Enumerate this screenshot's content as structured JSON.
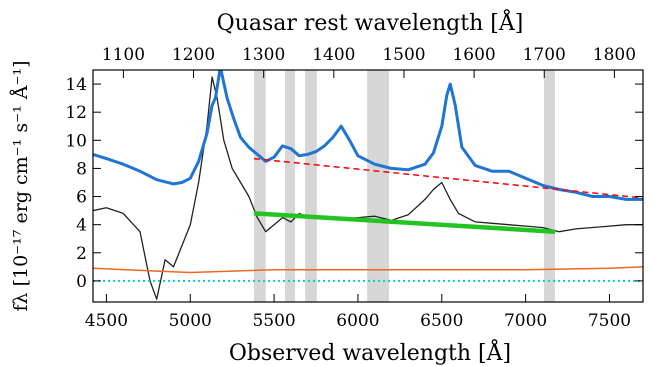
{
  "chart_data": {
    "type": "line",
    "top_axis_label": "Quasar rest wavelength [Å]",
    "xlabel": "Observed wavelength [Å]",
    "ylabel": "fλ [10⁻¹⁷ erg cm⁻¹ s⁻¹ Å⁻¹]",
    "xlim": [
      4420,
      7700
    ],
    "ylim": [
      -1.5,
      15
    ],
    "x_ticks": [
      4500,
      5000,
      5500,
      6000,
      6500,
      7000,
      7500
    ],
    "x_tick_labels": [
      "4500",
      "5000",
      "5500",
      "6000",
      "6500",
      "7000",
      "7500"
    ],
    "y_ticks": [
      0,
      2,
      4,
      6,
      8,
      10,
      12,
      14
    ],
    "y_tick_labels": [
      "0",
      "2",
      "4",
      "6",
      "8",
      "10",
      "12",
      "14"
    ],
    "top_ticks_rest": [
      1100,
      1200,
      1300,
      1400,
      1500,
      1600,
      1700,
      1800
    ],
    "top_tick_labels": [
      "1100",
      "1200",
      "1300",
      "1400",
      "1500",
      "1600",
      "1700",
      "1800"
    ],
    "shaded_regions": [
      [
        5380,
        5450
      ],
      [
        5565,
        5625
      ],
      [
        5685,
        5755
      ],
      [
        6055,
        6185
      ],
      [
        7110,
        7175
      ]
    ],
    "series": [
      {
        "kind": "step",
        "color": "#222222",
        "x": [
          4420,
          4500,
          4600,
          4700,
          4760,
          4800,
          4850,
          4900,
          4950,
          5000,
          5050,
          5100,
          5130,
          5160,
          5200,
          5250,
          5300,
          5350,
          5400,
          5450,
          5500,
          5550,
          5600,
          5650,
          5700,
          5800,
          5900,
          6000,
          6100,
          6200,
          6300,
          6400,
          6450,
          6500,
          6550,
          6600,
          6700,
          6800,
          6900,
          7000,
          7100,
          7200,
          7300,
          7400,
          7500,
          7600,
          7700
        ],
        "y": [
          5.0,
          5.2,
          4.8,
          3.5,
          0.0,
          -1.3,
          1.5,
          1.0,
          2.5,
          4.0,
          7.0,
          11.0,
          14.5,
          13.0,
          10.0,
          8.0,
          7.0,
          6.0,
          4.5,
          3.5,
          4.0,
          4.5,
          4.2,
          4.8,
          4.5,
          4.5,
          4.4,
          4.5,
          4.6,
          4.3,
          4.7,
          5.8,
          6.5,
          7.0,
          5.8,
          4.8,
          4.2,
          4.1,
          4.0,
          3.9,
          3.8,
          3.5,
          3.7,
          3.8,
          3.9,
          4.0,
          4.0
        ]
      },
      {
        "kind": "line",
        "color": "#1f74d4",
        "x": [
          4420,
          4500,
          4600,
          4700,
          4800,
          4900,
          4950,
          5000,
          5050,
          5100,
          5130,
          5150,
          5180,
          5220,
          5260,
          5300,
          5350,
          5400,
          5450,
          5500,
          5550,
          5600,
          5650,
          5700,
          5750,
          5800,
          5850,
          5900,
          5950,
          6000,
          6100,
          6200,
          6300,
          6400,
          6450,
          6500,
          6530,
          6550,
          6580,
          6620,
          6700,
          6800,
          6900,
          7000,
          7100,
          7200,
          7300,
          7400,
          7500,
          7600,
          7700
        ],
        "y": [
          9.0,
          8.7,
          8.3,
          7.8,
          7.2,
          6.9,
          7.0,
          7.3,
          8.5,
          10.5,
          12.5,
          13.0,
          15.2,
          13.0,
          11.5,
          10.2,
          9.5,
          9.0,
          8.5,
          8.8,
          9.6,
          9.4,
          8.9,
          9.0,
          9.2,
          9.6,
          10.2,
          11.0,
          10.0,
          8.9,
          8.3,
          8.0,
          7.9,
          8.3,
          9.1,
          11.0,
          13.2,
          14.0,
          12.5,
          9.5,
          8.2,
          7.8,
          7.8,
          7.3,
          6.8,
          6.5,
          6.3,
          6.0,
          6.0,
          5.8,
          5.8
        ]
      },
      {
        "kind": "line",
        "color": "#ee6622",
        "x": [
          4420,
          4800,
          5000,
          5500,
          6000,
          6500,
          7000,
          7500,
          7700
        ],
        "y": [
          0.9,
          0.7,
          0.6,
          0.8,
          0.8,
          0.8,
          0.8,
          0.9,
          1.0
        ]
      },
      {
        "kind": "line",
        "color": "#ff0000",
        "dash": true,
        "x": [
          5380,
          7700
        ],
        "y": [
          8.7,
          5.9
        ]
      },
      {
        "kind": "line",
        "color": "#22c422",
        "x": [
          5380,
          7175
        ],
        "y": [
          4.8,
          3.5
        ]
      },
      {
        "kind": "line",
        "color": "#00ccdd",
        "dots": true,
        "x": [
          4420,
          7700
        ],
        "y": [
          0.0,
          0.0
        ]
      }
    ]
  }
}
